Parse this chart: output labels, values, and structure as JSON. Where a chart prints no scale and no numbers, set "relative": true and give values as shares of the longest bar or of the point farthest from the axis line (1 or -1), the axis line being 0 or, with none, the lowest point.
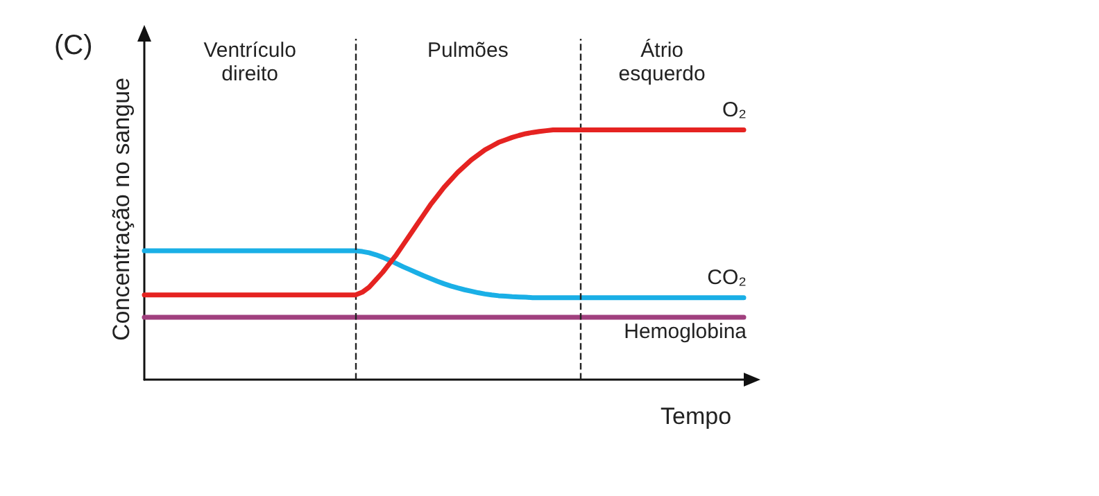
{
  "chart_data": {
    "type": "line",
    "title": "(C)",
    "xlabel": "Tempo",
    "ylabel": "Concentração no sangue",
    "relative": true,
    "grid": false,
    "legend": false,
    "marker": "none",
    "line_style": "solid",
    "categories": [
      null,
      null,
      null,
      null,
      null,
      null,
      null,
      null,
      null,
      null,
      null,
      null,
      null,
      null,
      null,
      null,
      null,
      null,
      null,
      null,
      null,
      null,
      null,
      null,
      null,
      null,
      null,
      null,
      null,
      null,
      null,
      null,
      null,
      null,
      null,
      null,
      null,
      null,
      null,
      null,
      null,
      null,
      null,
      null,
      null,
      null,
      null,
      null,
      null,
      null,
      null,
      null,
      null,
      null,
      null,
      null,
      null,
      null,
      null,
      null,
      null,
      null,
      null,
      null,
      null,
      null,
      null,
      null,
      null,
      null,
      null,
      null,
      null,
      null,
      null,
      null,
      null,
      null,
      null,
      null,
      null,
      null,
      null,
      null,
      null,
      null,
      null,
      null,
      null
    ],
    "series": [
      {
        "name": "O₂",
        "color": "#e52321",
        "values": [
          0.339,
          0.339,
          0.339,
          0.339,
          0.339,
          0.339,
          0.339,
          0.339,
          0.339,
          0.339,
          0.339,
          0.339,
          0.339,
          0.339,
          0.339,
          0.339,
          0.339,
          0.339,
          0.339,
          0.339,
          0.339,
          0.339,
          0.339,
          0.339,
          0.339,
          0.339,
          0.339,
          0.339,
          0.339,
          0.339,
          0.339,
          0.339,
          0.35,
          0.37,
          0.4,
          0.43,
          0.465,
          0.5,
          0.54,
          0.58,
          0.62,
          0.66,
          0.7,
          0.735,
          0.77,
          0.8,
          0.83,
          0.855,
          0.88,
          0.9,
          0.92,
          0.935,
          0.95,
          0.96,
          0.97,
          0.978,
          0.985,
          0.99,
          0.994,
          0.997,
          1,
          1,
          1,
          1,
          1,
          1,
          1,
          1,
          1,
          1,
          1,
          1,
          1,
          1,
          1,
          1,
          1,
          1,
          1,
          1,
          1,
          1,
          1,
          1,
          1,
          1,
          1,
          1,
          1
        ]
      },
      {
        "name": "CO₂",
        "color": "#1aafe6",
        "values": [
          0.516,
          0.516,
          0.516,
          0.516,
          0.516,
          0.516,
          0.516,
          0.516,
          0.516,
          0.516,
          0.516,
          0.516,
          0.516,
          0.516,
          0.516,
          0.516,
          0.516,
          0.516,
          0.516,
          0.516,
          0.516,
          0.516,
          0.516,
          0.516,
          0.516,
          0.516,
          0.516,
          0.516,
          0.516,
          0.516,
          0.516,
          0.516,
          0.513,
          0.508,
          0.5,
          0.49,
          0.478,
          0.465,
          0.452,
          0.44,
          0.428,
          0.416,
          0.405,
          0.394,
          0.384,
          0.375,
          0.367,
          0.36,
          0.354,
          0.348,
          0.343,
          0.339,
          0.336,
          0.334,
          0.332,
          0.331,
          0.33,
          0.328,
          0.328,
          0.328,
          0.328,
          0.328,
          0.328,
          0.328,
          0.328,
          0.328,
          0.328,
          0.328,
          0.328,
          0.328,
          0.328,
          0.328,
          0.328,
          0.328,
          0.328,
          0.328,
          0.328,
          0.328,
          0.328,
          0.328,
          0.328,
          0.328,
          0.328,
          0.328,
          0.328,
          0.328,
          0.328,
          0.328,
          0.328
        ]
      },
      {
        "name": "Hemoglobina",
        "color": "#a0407e",
        "values": [
          0.25,
          0.25,
          0.25,
          0.25,
          0.25,
          0.25,
          0.25,
          0.25,
          0.25,
          0.25,
          0.25,
          0.25,
          0.25,
          0.25,
          0.25,
          0.25,
          0.25,
          0.25,
          0.25,
          0.25,
          0.25,
          0.25,
          0.25,
          0.25,
          0.25,
          0.25,
          0.25,
          0.25,
          0.25,
          0.25,
          0.25,
          0.25,
          0.25,
          0.25,
          0.25,
          0.25,
          0.25,
          0.25,
          0.25,
          0.25,
          0.25,
          0.25,
          0.25,
          0.25,
          0.25,
          0.25,
          0.25,
          0.25,
          0.25,
          0.25,
          0.25,
          0.25,
          0.25,
          0.25,
          0.25,
          0.25,
          0.25,
          0.25,
          0.25,
          0.25,
          0.25,
          0.25,
          0.25,
          0.25,
          0.25,
          0.25,
          0.25,
          0.25,
          0.25,
          0.25,
          0.25,
          0.25,
          0.25,
          0.25,
          0.25,
          0.25,
          0.25,
          0.25,
          0.25,
          0.25,
          0.25,
          0.25,
          0.25,
          0.25,
          0.25,
          0.25,
          0.25,
          0.25,
          0.25
        ]
      }
    ],
    "annotations": [
      "Ventrículo\ndireito",
      "Pulmões",
      "Átrio\nesquerdo"
    ]
  }
}
